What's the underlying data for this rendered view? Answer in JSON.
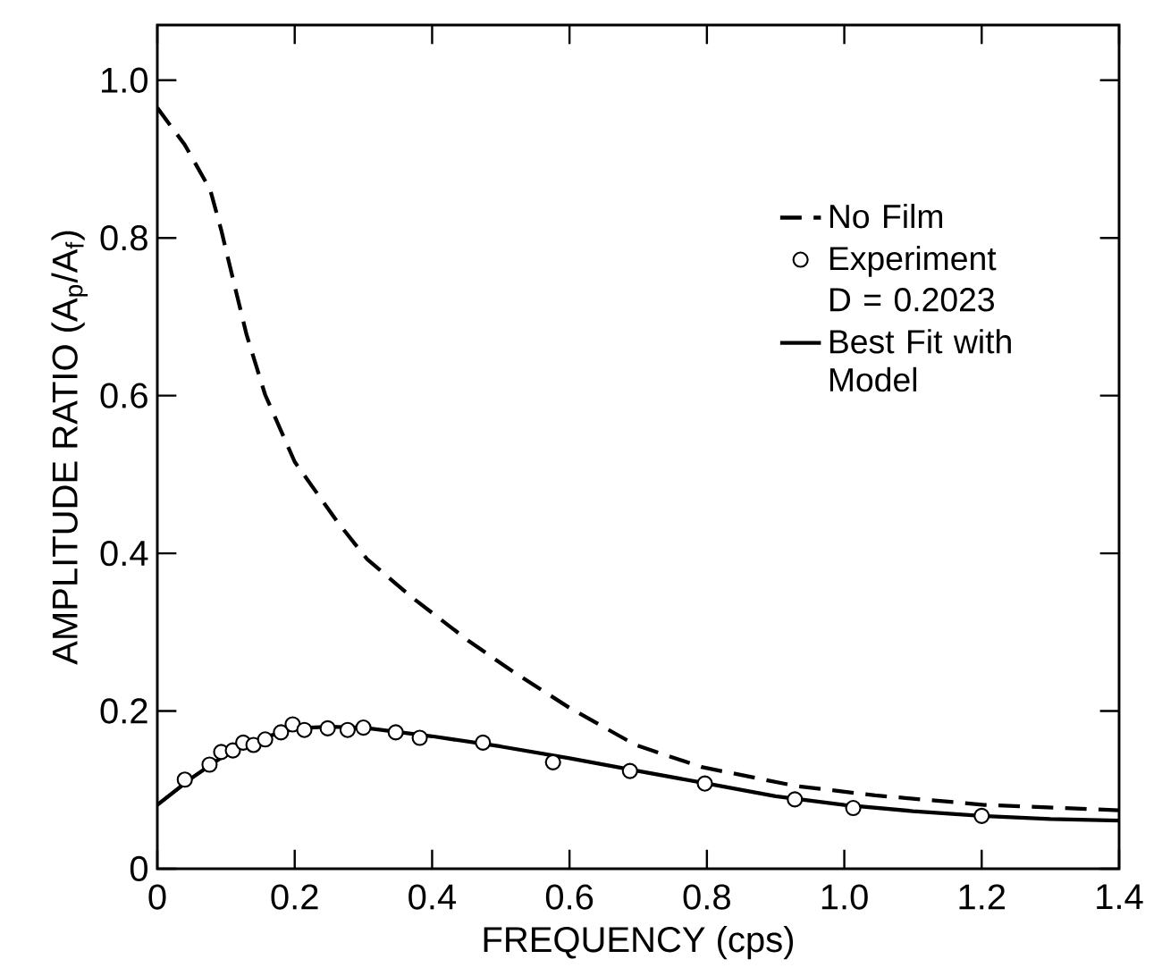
{
  "chart_data": {
    "type": "line",
    "xlabel": "FREQUENCY (cps)",
    "ylabel": "AMPLITUDE RATIO (A$_{p}$/A$_{f}$)",
    "xlim": [
      0,
      1.4
    ],
    "ylim": [
      0,
      1.07
    ],
    "xticks": [
      0,
      0.2,
      0.4,
      0.6,
      0.8,
      {
        "value": 1,
        "label": "1.0"
      },
      1.2,
      1.4
    ],
    "yticks": [
      0,
      0.2,
      0.4,
      0.6,
      0.8,
      {
        "value": 1,
        "label": "1.0"
      }
    ],
    "legend": "top right",
    "grid": false,
    "annotations": [
      "D = 0.2023"
    ],
    "series": [
      {
        "name": "No Film",
        "line_style": "dashed",
        "marker": "none",
        "color": "#000000",
        "x": [
          0,
          0.04,
          0.077,
          0.093,
          0.109,
          0.13,
          0.157,
          0.2,
          0.262,
          0.305,
          0.368,
          0.453,
          0.516,
          0.6,
          0.696,
          0.792,
          0.929,
          1.045,
          1.204,
          1.4
        ],
        "values": [
          0.965,
          0.918,
          0.861,
          0.81,
          0.752,
          0.677,
          0.601,
          0.516,
          0.44,
          0.393,
          0.346,
          0.289,
          0.251,
          0.204,
          0.157,
          0.129,
          0.105,
          0.093,
          0.081,
          0.074
        ]
      },
      {
        "name": "Experiment",
        "type": "scatter",
        "marker": "circle",
        "color": "#000000",
        "x": [
          0.04,
          0.076,
          0.093,
          0.11,
          0.125,
          0.14,
          0.157,
          0.18,
          0.197,
          0.214,
          0.248,
          0.277,
          0.3,
          0.347,
          0.382,
          0.474,
          0.576,
          0.688,
          0.797,
          0.928,
          1.013,
          1.2
        ],
        "values": [
          0.113,
          0.132,
          0.148,
          0.15,
          0.16,
          0.157,
          0.164,
          0.173,
          0.183,
          0.176,
          0.178,
          0.176,
          0.179,
          0.173,
          0.166,
          0.16,
          0.135,
          0.124,
          0.108,
          0.088,
          0.077,
          0.067
        ]
      },
      {
        "name": "Best Fit with Model",
        "line_style": "solid",
        "marker": "none",
        "color": "#000000",
        "x": [
          0,
          0.05,
          0.1,
          0.15,
          0.2,
          0.25,
          0.3,
          0.4,
          0.5,
          0.6,
          0.7,
          0.8,
          0.9,
          1.0,
          1.1,
          1.2,
          1.3,
          1.4
        ],
        "values": [
          0.081,
          0.115,
          0.145,
          0.165,
          0.178,
          0.18,
          0.179,
          0.168,
          0.155,
          0.14,
          0.124,
          0.108,
          0.092,
          0.081,
          0.073,
          0.067,
          0.063,
          0.061
        ]
      }
    ]
  }
}
